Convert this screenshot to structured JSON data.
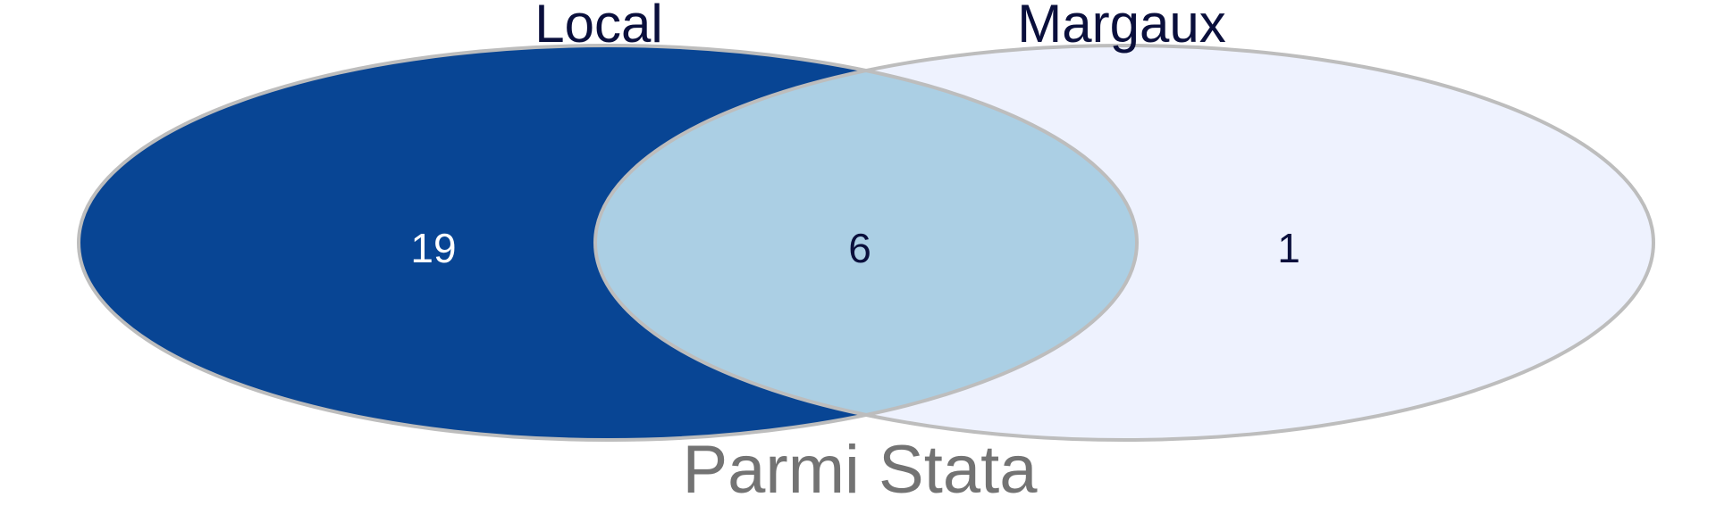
{
  "diagram": {
    "type": "venn",
    "caption": "Parmi Stata",
    "sets": [
      {
        "name": "Local",
        "only_count": "19"
      },
      {
        "name": "Margaux",
        "only_count": "1"
      }
    ],
    "intersection_count": "6",
    "colors": {
      "left_fill": "#084594",
      "right_fill": "#eef2fe",
      "overlap_fill": "#abcfe4",
      "outline": "#bdbdbd",
      "set_label": "#0a0f3c",
      "left_count_text": "#ffffff",
      "dark_count_text": "#0a0f3c",
      "caption_text": "#737373"
    }
  }
}
